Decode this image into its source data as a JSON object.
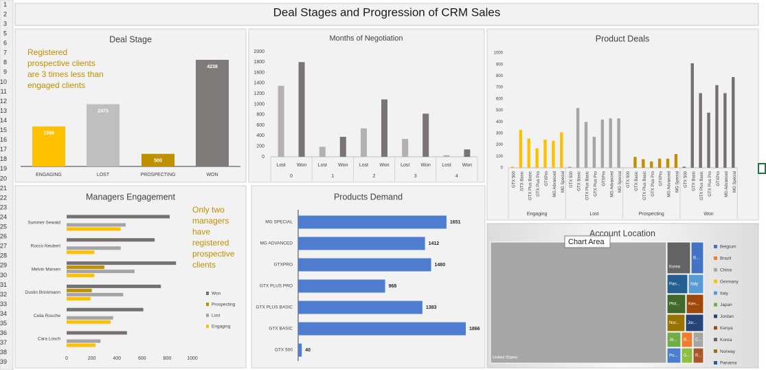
{
  "row_numbers": [
    1,
    2,
    3,
    5,
    6,
    7,
    8,
    9,
    10,
    11,
    12,
    13,
    14,
    15,
    16,
    17,
    18,
    19,
    20,
    21,
    22,
    23,
    24,
    25,
    26,
    27,
    28,
    29,
    30,
    31,
    32,
    33,
    34,
    35,
    36,
    37,
    38,
    39
  ],
  "title": "Deal Stages and Progression of CRM Sales",
  "tooltip": "Chart Area",
  "chart_data": [
    {
      "type": "bar",
      "title": "Deal Stage",
      "annotation": [
        "Registered",
        "prospective clients",
        "are  3 times less than",
        "engaged clients"
      ],
      "categories": [
        "ENGAGING",
        "LOST",
        "PROSPECTING",
        "WON"
      ],
      "values": [
        1589,
        2473,
        500,
        4238
      ],
      "colors": [
        "#ffc000",
        "#bfbfbf",
        "#bf9000",
        "#7f7b7b"
      ]
    },
    {
      "type": "grouped_bar",
      "title": "Months of Negotiation",
      "categories": [
        "0",
        "1",
        "2",
        "3",
        "4"
      ],
      "series": [
        {
          "name": "Lost",
          "color": "#b4b0b0",
          "values": [
            1350,
            190,
            540,
            340,
            30
          ]
        },
        {
          "name": "Won",
          "color": "#7a7474",
          "values": [
            1800,
            380,
            1090,
            820,
            140
          ]
        }
      ],
      "ylim": [
        0,
        2000
      ],
      "yticks": [
        0,
        200,
        400,
        600,
        800,
        1000,
        1200,
        1400,
        1600,
        1800,
        2000
      ]
    },
    {
      "type": "multi_group_bar",
      "title": "Product Deals",
      "categories": [
        "GTX 500",
        "GTX Basic",
        "GTX Plus Basic",
        "GTX Plus Pro",
        "GTXPro",
        "MG Advanced",
        "MG Special"
      ],
      "series": [
        {
          "name": "Engaging",
          "color": "#ffc000",
          "values": [
            10,
            330,
            255,
            170,
            245,
            235,
            310
          ]
        },
        {
          "name": "Lost",
          "color": "#a5a5a5",
          "values": [
            10,
            520,
            400,
            270,
            420,
            430,
            430
          ]
        },
        {
          "name": "Prospecting",
          "color": "#bf9000",
          "values": [
            0,
            95,
            75,
            55,
            80,
            80,
            120
          ]
        },
        {
          "name": "Won",
          "color": "#767171",
          "values": [
            10,
            910,
            650,
            480,
            720,
            650,
            790
          ]
        }
      ],
      "ylim": [
        0,
        1000
      ],
      "yticks": [
        0,
        100,
        200,
        300,
        400,
        500,
        600,
        700,
        800,
        900,
        1000
      ]
    },
    {
      "type": "hbar_grouped",
      "title": "Managers Engagement",
      "annotation": [
        "Only two",
        "managers",
        "have",
        "registered",
        "prospective",
        "clients"
      ],
      "categories": [
        "Summer Sewald",
        "Rocco Neubert",
        "Melvin Marxen",
        "Dustin Brinkmann",
        "Celia Rouche",
        "Cara Losch"
      ],
      "series": [
        {
          "name": "Won",
          "color": "#767171",
          "values": [
            820,
            700,
            870,
            750,
            610,
            480
          ]
        },
        {
          "name": "Prospecting",
          "color": "#bf9000",
          "values": [
            0,
            0,
            300,
            200,
            0,
            0
          ]
        },
        {
          "name": "Lost",
          "color": "#a5a5a5",
          "values": [
            470,
            430,
            540,
            450,
            370,
            270
          ]
        },
        {
          "name": "Engaging",
          "color": "#ffc000",
          "values": [
            430,
            220,
            220,
            190,
            350,
            230
          ]
        }
      ],
      "xlim": [
        0,
        1000
      ],
      "xticks": [
        0,
        200,
        400,
        600,
        800,
        1000
      ]
    },
    {
      "type": "hbar",
      "title": "Products Demand",
      "categories": [
        "MG SPECIAL",
        "MG ADVANCED",
        "GTXPRO",
        "GTX PLUS PRO",
        "GTX PLUS BASIC",
        "GTX BASIC",
        "GTX 500"
      ],
      "values": [
        1651,
        1412,
        1480,
        968,
        1383,
        1866,
        40
      ],
      "color": "#4f7ed0"
    },
    {
      "type": "treemap",
      "title": "Account Location",
      "tiles": [
        {
          "label": "United States",
          "color": "#a6a6a6"
        },
        {
          "label": "Korea",
          "color": "#636363"
        },
        {
          "label": "B...",
          "color": "#4472c4"
        },
        {
          "label": "Pan...",
          "color": "#255e91"
        },
        {
          "label": "Italy",
          "color": "#5b9bd5"
        },
        {
          "label": "Phil...",
          "color": "#43682b"
        },
        {
          "label": "Ken...",
          "color": "#9e480e"
        },
        {
          "label": "Nor...",
          "color": "#997300"
        },
        {
          "label": "Jor...",
          "color": "#264478"
        },
        {
          "label": "Ja...",
          "color": "#70ad47"
        },
        {
          "label": "B...",
          "color": "#ed7d31"
        },
        {
          "label": "C...",
          "color": "#a5a5a5"
        },
        {
          "label": "Po...",
          "color": "#4a7fd0"
        },
        {
          "label": "G...",
          "color": "#8cbf3f"
        },
        {
          "label": "R...",
          "color": "#a9562a"
        }
      ],
      "legend": [
        {
          "name": "Belgium",
          "color": "#4472c4"
        },
        {
          "name": "Brazil",
          "color": "#ed7d31"
        },
        {
          "name": "China",
          "color": "#a5a5a5"
        },
        {
          "name": "Germany",
          "color": "#ffc000"
        },
        {
          "name": "Italy",
          "color": "#5b9bd5"
        },
        {
          "name": "Japan",
          "color": "#70ad47"
        },
        {
          "name": "Jordan",
          "color": "#264478"
        },
        {
          "name": "Kenya",
          "color": "#9e480e"
        },
        {
          "name": "Korea",
          "color": "#636363"
        },
        {
          "name": "Norway",
          "color": "#997300"
        },
        {
          "name": "Panama",
          "color": "#255e91"
        }
      ]
    }
  ]
}
